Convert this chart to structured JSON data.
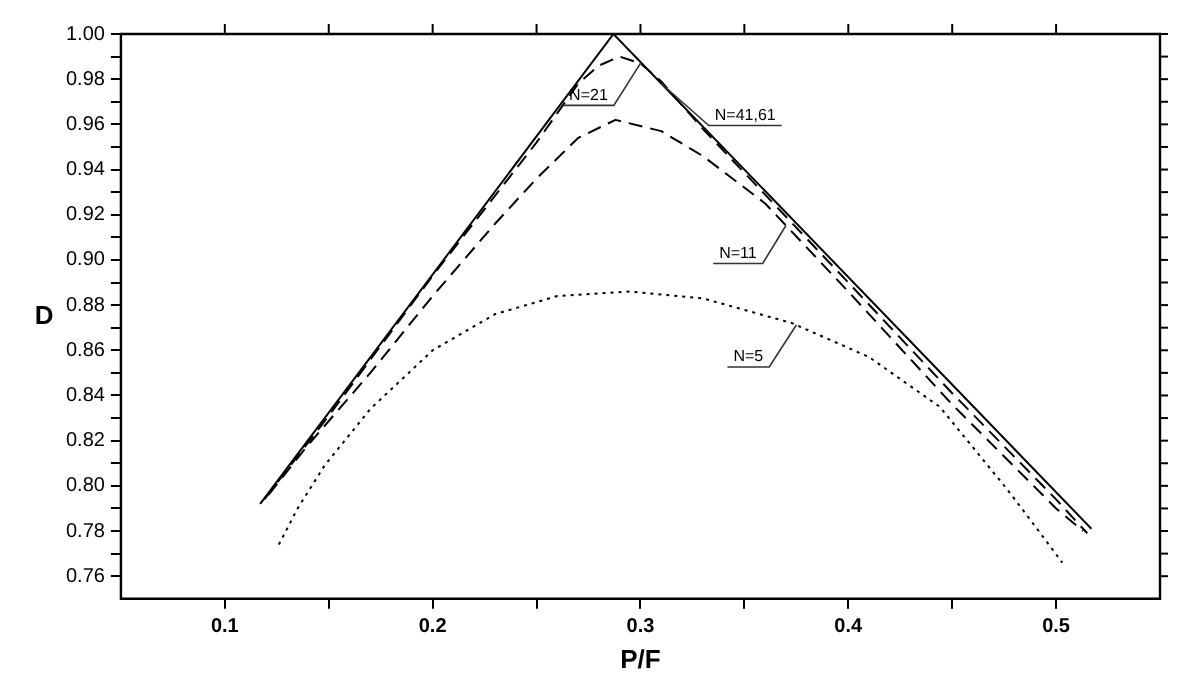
{
  "chart_data": {
    "type": "line",
    "xlabel": "P/F",
    "ylabel": "D",
    "legend": false,
    "grid": false,
    "marker": "none",
    "xlim": [
      0.05,
      0.55
    ],
    "ylim": [
      0.75,
      1.0
    ],
    "xticks": [
      0.1,
      {
        "value": 0.15,
        "label": null
      },
      0.2,
      {
        "value": 0.25,
        "label": null
      },
      0.3,
      {
        "value": 0.35,
        "label": null
      },
      0.4,
      {
        "value": 0.45,
        "label": null
      },
      0.5
    ],
    "yticks": [
      0.76,
      {
        "value": 0.77,
        "label": null
      },
      0.78,
      {
        "value": 0.79,
        "label": null
      },
      {
        "value": 0.8,
        "label": "0.80"
      },
      {
        "value": 0.81,
        "label": null
      },
      0.82,
      {
        "value": 0.83,
        "label": null
      },
      0.84,
      {
        "value": 0.85,
        "label": null
      },
      0.86,
      {
        "value": 0.87,
        "label": null
      },
      0.88,
      {
        "value": 0.89,
        "label": null
      },
      {
        "value": 0.9,
        "label": "0.90"
      },
      {
        "value": 0.91,
        "label": null
      },
      0.92,
      {
        "value": 0.93,
        "label": null
      },
      0.94,
      {
        "value": 0.95,
        "label": null
      },
      0.96,
      {
        "value": 0.97,
        "label": null
      },
      0.98,
      {
        "value": 0.99,
        "label": null
      },
      {
        "value": 1.0,
        "label": "1.00"
      }
    ],
    "series": [
      {
        "name": "N=41,61",
        "color": "#000000",
        "line_style": "solid",
        "x": [
          0.117,
          0.287,
          0.517
        ],
        "values": [
          0.792,
          1.0,
          0.781
        ]
      },
      {
        "name": "N=21",
        "color": "#000000",
        "line_style": "dashed",
        "x": [
          0.119,
          0.15,
          0.2,
          0.25,
          0.27,
          0.28,
          0.29,
          0.3,
          0.31,
          0.33,
          0.4,
          0.45,
          0.5,
          0.515
        ],
        "values": [
          0.794,
          0.831,
          0.893,
          0.952,
          0.978,
          0.986,
          0.99,
          0.987,
          0.979,
          0.958,
          0.89,
          0.841,
          0.794,
          0.779
        ]
      },
      {
        "name": "N=11",
        "color": "#000000",
        "line_style": "dashed",
        "x": [
          0.121,
          0.14,
          0.17,
          0.2,
          0.23,
          0.25,
          0.27,
          0.288,
          0.31,
          0.33,
          0.36,
          0.4,
          0.45,
          0.5,
          0.513
        ],
        "values": [
          0.796,
          0.818,
          0.85,
          0.884,
          0.916,
          0.936,
          0.954,
          0.962,
          0.957,
          0.946,
          0.925,
          0.886,
          0.836,
          0.79,
          0.78
        ]
      },
      {
        "name": "N=5",
        "color": "#000000",
        "line_style": "dotted",
        "x": [
          0.126,
          0.135,
          0.148,
          0.17,
          0.2,
          0.23,
          0.26,
          0.295,
          0.33,
          0.373,
          0.41,
          0.444,
          0.476,
          0.49,
          0.503
        ],
        "values": [
          0.774,
          0.79,
          0.809,
          0.834,
          0.86,
          0.876,
          0.884,
          0.886,
          0.883,
          0.872,
          0.857,
          0.835,
          0.799,
          0.782,
          0.766
        ]
      }
    ]
  }
}
